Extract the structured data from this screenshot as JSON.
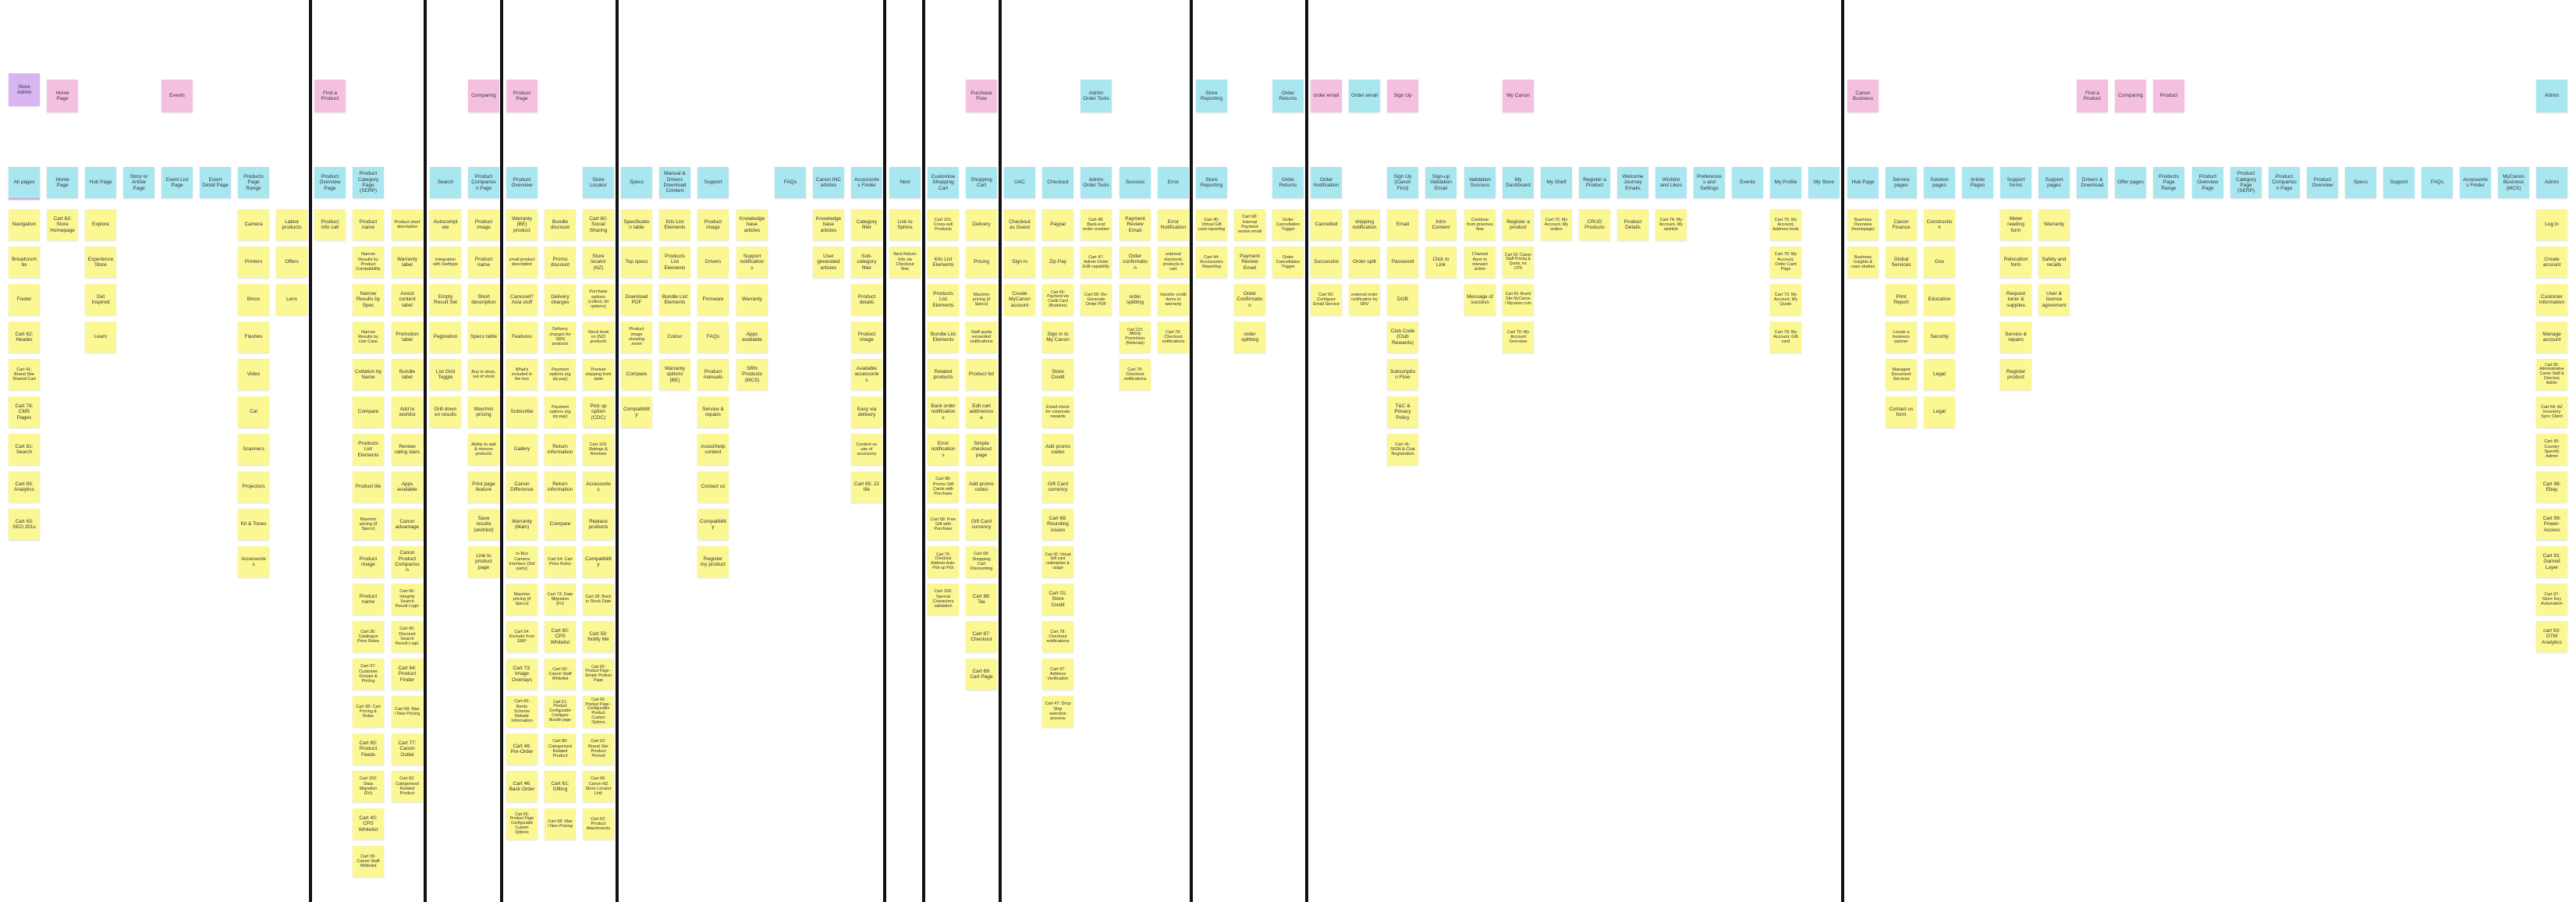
{
  "colors": {
    "yellow": "#fbf793",
    "blue": "#a8e6f0",
    "pink": "#f5c0e0",
    "purple": "#d8b5f0",
    "divider": "#111111"
  },
  "columns": [
    {
      "header": "All pages",
      "tags": [
        [
          "Store Admin",
          "purple"
        ],
        [
          "User",
          "purple"
        ]
      ],
      "items": [
        "Navigation",
        "Breadcrumbs",
        "Footer",
        "Cart 62: Header",
        "Cart 41: Brand Site Shared Cart",
        "Cart 78: CMS Pages",
        "Cart 81: Search",
        "Cart 83: Analytics",
        "Cart 43: SEO 301s"
      ]
    },
    {
      "header": "Home Page",
      "tags": [
        [
          "Home Page",
          "pink"
        ]
      ],
      "items": [
        "Cart 63: Store Homepage"
      ]
    },
    {
      "header": "Hub Page",
      "tags": [],
      "items": [
        "Explore",
        "Experience Store",
        "Get Inspired",
        "Learn"
      ]
    },
    {
      "header": "Story or Article Page",
      "tags": [],
      "items": []
    },
    {
      "header": "Event List Page",
      "tags": [
        [
          "Events",
          "pink"
        ]
      ],
      "items": []
    },
    {
      "header": "Event Detail Page",
      "tags": [],
      "items": []
    },
    {
      "header": "Products Page Range",
      "tags": [],
      "items": [
        "Camera",
        "Printers",
        "Binos",
        "Flashes",
        "Video",
        "Cal",
        "Scanners",
        "Projectors",
        "Kit & Tones",
        "Accessories"
      ]
    },
    {
      "header": "",
      "tags": [],
      "items": [
        "Latest products",
        "Offers",
        "Lens"
      ]
    },
    {
      "header": "Product Overview Page",
      "tags": [
        [
          "Find a Product",
          "pink"
        ]
      ],
      "items": [
        "Product info call"
      ],
      "divider": true
    },
    {
      "header": "Product Category Page (SERP)",
      "tags": [],
      "items": [
        "Product name",
        "Narrow Results by Product Compatibility",
        "Narrow Results by Spec",
        "Narrow Results by Use Case",
        "Collation by Name",
        "Compare",
        "Products List Elements",
        "Product tile",
        "Max/min pricing (if Specs)",
        "Product image",
        "Product name",
        "Cart 36: Catalogue Price Rules",
        "Cart 37: Customer Groups & Pricing",
        "Cart 38: Cart Pricing & Rules",
        "Cart 65: Product Feeds",
        "Cart 150: Data Migration (Fri)",
        "Cart 40: CPS Whitelist",
        "Cart 39: Canon Staff Whitelist"
      ]
    },
    {
      "header": "",
      "tags": [],
      "items": [
        "Product short description",
        "Warranty label",
        "Assist content label",
        "Promotion label",
        "Bundle label",
        "Add to wishlist",
        "Review rating stars",
        "Apps available",
        "Canon advantage",
        "Canon Product Comparison",
        "Cart 66: Integrity Search Result Logic",
        "Cart 66: Discount Search Result Logic",
        "Cart 64: Product Finder",
        "Cart 68: Max / New Pricing",
        "Cart 77: Canon Outlet",
        "Cart 82: Categorised Related Product"
      ]
    },
    {
      "header": "Search",
      "tags": [],
      "items": [
        "Autocomplete",
        "Integration with Swiftype",
        "Empty Result Set",
        "Pagination",
        "List Grid Toggle",
        "Drill down on results"
      ],
      "divider": true
    },
    {
      "header": "Product Comparison Page",
      "tags": [
        [
          "Comparing",
          "pink"
        ]
      ],
      "items": [
        "Product image",
        "Product name",
        "Short description",
        "Specs table",
        "Buy in stock, out of stock",
        "Max/min pricing",
        "Ability to add & remove products",
        "Print page feature",
        "Save results (wishlist)",
        "Link to product page"
      ]
    },
    {
      "header": "Product Overview",
      "tags": [
        [
          "Product Page",
          "pink"
        ]
      ],
      "items": [
        "Warranty (BE) product",
        "small product description",
        "Carousel? Asia stuff",
        "Features",
        "What's included in the box",
        "Subscribe",
        "Gallery",
        "Canon Difference",
        "Warranty (Main)",
        "In-Box Camera Interface (3rd party)",
        "Max/min pricing (if Specs)",
        "Cart 54: Exclude from ERP",
        "Cart 73: Image Overlays",
        "Cart 60: Bento Scheme Rebate Information",
        "Cart 46: Pre-Order",
        "Cart 46: Back Order",
        "Cart 65: Product Page Configurable Custom Options"
      ],
      "divider": true
    },
    {
      "header": "",
      "tags": [],
      "items": [
        "Bundle discount",
        "Promo discount",
        "Delivery charges",
        "Delivery charges for SRN products",
        "Payment options (eg zip pay)",
        "Payment options (eg zip pay)",
        "Return information",
        "Return information",
        "Compare",
        "Cart 54: Cart Price Rules",
        "Cart 73: Date Migration (Fri)",
        "Cart 60: CPS Whitelist",
        "Cart 59: Canon Staff Whitelist",
        "Cart 61: Product Configurable Configure Bundle page",
        "Cart 80: Categorised Related Product",
        "Cart 61: Gifting",
        "Cart 68: Max / Non-Pricing"
      ]
    },
    {
      "header": "Store Locator",
      "tags": [],
      "items": [
        "Cart 60: Social Sharing",
        "Store locator (NZ)",
        "Purchase options (collect, kit options)",
        "Stock level on (NZ) products",
        "Premier shipping from state",
        "Pick up option (CDC)",
        "Cart 103: Ratings & Reviews",
        "Accessories",
        "Replace products",
        "Compatibility",
        "Cart 28: Back in Stock Date",
        "Cart 59: Notify Me",
        "Cart 65: Product Page - Simple Product Page",
        "Cart 66: Product Page - Configurable Product Custom Options",
        "Cart 62: Brand Site Product Pinned",
        "Cart 66: Canon NZ Store Locator Link",
        "Cart 62: Product Attachments"
      ]
    },
    {
      "header": "Specs",
      "tags": [],
      "items": [
        "Specification table",
        "Top specs",
        "Download PDF",
        "Product image showing zoom",
        "Compare",
        "Compatibility"
      ],
      "divider": true
    },
    {
      "header": "Manual & Drivers Download Content",
      "tags": [],
      "items": [
        "Kits List Elements",
        "Products List Elements",
        "Bundle List Elements",
        "Colour",
        "Warranty options (BE)"
      ]
    },
    {
      "header": "Support",
      "tags": [],
      "items": [
        "Product image",
        "Drivers",
        "Firmware",
        "FAQs",
        "Product manuals",
        "Service & repairs",
        "Assist/help content",
        "Contact us",
        "Compatibility",
        "Register my product"
      ]
    },
    {
      "header": "",
      "tags": [],
      "items": [
        "Knowledge base articles",
        "Support notifications",
        "Warranty",
        "Apps available",
        "SRN Products (MCS)"
      ]
    },
    {
      "header": "FAQs",
      "tags": [],
      "items": []
    },
    {
      "header": "Canon INC articles",
      "tags": [],
      "items": [
        "Knowledge base articles",
        "User generated articles"
      ]
    },
    {
      "header": "Accessories Finder",
      "tags": [],
      "items": [
        "Category filter",
        "Sub-category filter",
        "Product details",
        "Product image",
        "Available accessories",
        "Easy via delivery",
        "Content on use of accessory",
        "Cart 65: 22 tile"
      ]
    },
    {
      "header": "Next",
      "tags": [],
      "items": [
        "Link to Sphinx",
        "Next Return Info via Checkout flow"
      ],
      "divider": true
    },
    {
      "header": "Customise Shopping Cart",
      "tags": [],
      "items": [
        "Cart 101: Cross-sell Products",
        "Kits List Elements",
        "Products List Elements",
        "Bundle List Elements",
        "Related products",
        "Back order notifications",
        "Error notifications",
        "Cart 98: Promo Gift Cards with Purchase",
        "Cart 99: Free Gift with Purchase",
        "Cart 70: Checkout Address Auto-Pick-up Pick",
        "Cart 100: Special Characters validation"
      ],
      "divider": true
    },
    {
      "header": "Shopping Cart",
      "tags": [
        [
          "Purchase Flow",
          "pink"
        ]
      ],
      "items": [
        "Delivery",
        "Pricing",
        "Max/min pricing (if Specs)",
        "Staff quota exceeded notifications",
        "Product list",
        "Edit cart add/remove",
        "Simple checkout page",
        "Add promo codes",
        "Gift Card currency",
        "Cart 68: Shopping Cart Discounting",
        "Cart 88: Tax",
        "Cart 87: Checkout",
        "Cart 69: Cart Page"
      ]
    },
    {
      "header": "UAC",
      "tags": [],
      "items": [
        "Checkout as Guest",
        "Sign in",
        "Create MyCanon account"
      ],
      "divider": true
    },
    {
      "header": "Checkout",
      "tags": [],
      "items": [
        "Paypal",
        "Zip Pay",
        "Cart 40: Payment via Credit Card (Braintree)",
        "Sign in to My Canon",
        "Store Credit",
        "Email check for corporate rewards",
        "Add promo codes",
        "Gift Card currency",
        "Cart 68: Rounding issues",
        "Cart 42: Virtual Gift card redemption & usage",
        "Cart 01: Store Credit",
        "Cart 78: Checkout notifications",
        "Cart 97: Address Verification",
        "Cart 47: Drop Ship selection process"
      ]
    },
    {
      "header": "Admin Order Tools",
      "tags": [
        [
          "Admin Order Tools",
          "blue"
        ]
      ],
      "items": [
        "Cart 48: Back-end order creation",
        "Cart 47: Admin Order Edit capability",
        "Cart 58: Re-Generate Order PDF"
      ]
    },
    {
      "header": "Success",
      "tags": [],
      "items": [
        "Payment Review Email",
        "Order confirmation",
        "order splitting",
        "Cart 123: Affinity Promotions (Referrals)",
        "Cart 79: Checkout notifications"
      ]
    },
    {
      "header": "Error",
      "tags": [],
      "items": [
        "Error Notification",
        "external electronic products in cart",
        "transfer credit items to warranty",
        "Cart 79: Checkout notifications"
      ]
    },
    {
      "header": "Store Reporting",
      "tags": [
        [
          "Store Reporting",
          "blue"
        ]
      ],
      "items": [
        "Cart 45: Virtual Gift card reporting",
        "Cart 44: Accessories Reporting"
      ],
      "divider": true
    },
    {
      "header": "",
      "tags": [],
      "items": [
        "Cart 68: Internal Payment review email",
        "Payment Review Email",
        "Order Confirmation",
        "order splitting"
      ]
    },
    {
      "header": "Order Returns",
      "tags": [
        [
          "Order Returns",
          "blue"
        ]
      ],
      "items": [
        "Order Cancellation Trigger",
        "Order Cancellation Trigger"
      ]
    },
    {
      "header": "Order Notification",
      "tags": [
        [
          "order email",
          "pink"
        ]
      ],
      "items": [
        "Cancelled",
        "Successful",
        "Cart 50: Configure Email Service"
      ],
      "divider": true
    },
    {
      "header": "",
      "tags": [
        [
          "Order email",
          "blue"
        ]
      ],
      "items": [
        "shipping notification",
        "Order split",
        "external order notification by SRV"
      ]
    },
    {
      "header": "Sign Up (Canon First)",
      "tags": [
        [
          "Sign Up",
          "pink"
        ]
      ],
      "items": [
        "Email",
        "Password",
        "DOB",
        "Club Code (Club Rewards)",
        "Subscription Flow",
        "T&C & Privacy Policy",
        "Cart 41: SIGN & Club Registration"
      ]
    },
    {
      "header": "Sign-up Validation Email",
      "tags": [],
      "items": [
        "Intro Content",
        "Click to Link"
      ]
    },
    {
      "header": "Validation Success",
      "tags": [],
      "items": [
        "Continue from previous flow",
        "Channel them to relevant action",
        "Message of success"
      ]
    },
    {
      "header": "My Dashboard",
      "tags": [
        [
          "My Canon",
          "pink"
        ]
      ],
      "items": [
        "Register a product",
        "Cart 62: Canon Staff Pricing & Quota, inc CPS",
        "Cart 60: Brand Site MyCanon / Mycanon.com",
        "Cart 70: My Account Overview"
      ]
    },
    {
      "header": "My Shelf",
      "tags": [],
      "items": [
        "Cart 72: My Account, My orders"
      ]
    },
    {
      "header": "Register a Product",
      "tags": [],
      "items": [
        "CRUD Products"
      ]
    },
    {
      "header": "Welcome Journey Emails",
      "tags": [],
      "items": [
        "Product Details"
      ]
    },
    {
      "header": "Wishlist and Likes",
      "tags": [],
      "items": [
        "Cart 74: My Account, My wishlist"
      ]
    },
    {
      "header": "Preferences and Settings",
      "tags": [],
      "items": []
    },
    {
      "header": "Events",
      "tags": [],
      "items": []
    },
    {
      "header": "My Profile",
      "tags": [],
      "items": [
        "Cart 76: My Account, Address book",
        "Cart 75: My Account, Order Card Page",
        "Cart 73: My Account, My Quote",
        "Cart 79: My Account, Gift card"
      ]
    },
    {
      "header": "My Store",
      "tags": [],
      "items": []
    },
    {
      "header": "Hub Page",
      "tags": [
        [
          "Canon Business",
          "pink"
        ]
      ],
      "items": [
        "Business Overview (homepage)",
        "Business Insights & case studies"
      ],
      "divider": true
    },
    {
      "header": "Service pages",
      "tags": [],
      "items": [
        "Canon Finance",
        "Global Services",
        "Print Report",
        "Locate a business partner",
        "Managed Document Services",
        "Contact us form"
      ]
    },
    {
      "header": "Solution pages",
      "tags": [],
      "items": [
        "Construction",
        "Gov",
        "Education",
        "Security",
        "Legal",
        "Legal"
      ]
    },
    {
      "header": "Article Pages",
      "tags": [],
      "items": []
    },
    {
      "header": "Support forms",
      "tags": [],
      "items": [
        "Meter reading form",
        "Relocation form",
        "Request toner & supplies",
        "Service & repairs",
        "Register product"
      ]
    },
    {
      "header": "Support pages",
      "tags": [],
      "items": [
        "Warranty",
        "Safety and recalls",
        "User & license agreement"
      ]
    },
    {
      "header": "Drivers & Download",
      "tags": [
        [
          "Find a Product",
          "pink"
        ]
      ],
      "items": []
    },
    {
      "header": "Offer pages",
      "tags": [
        [
          "Comparing",
          "pink"
        ]
      ],
      "items": []
    },
    {
      "header": "Products Page Range",
      "tags": [
        [
          "Product",
          "pink"
        ]
      ],
      "items": []
    },
    {
      "header": "Product Overview Page",
      "tags": [],
      "items": []
    },
    {
      "header": "Product Category Page (SERP)",
      "tags": [],
      "items": []
    },
    {
      "header": "Product Comparison Page",
      "tags": [],
      "items": []
    },
    {
      "header": "Product Overview",
      "tags": [],
      "items": []
    },
    {
      "header": "Specs",
      "tags": [],
      "items": []
    },
    {
      "header": "Support",
      "tags": [],
      "items": []
    },
    {
      "header": "FAQs",
      "tags": [],
      "items": []
    },
    {
      "header": "Accessories Finder",
      "tags": [],
      "items": []
    },
    {
      "header": "MyCanon Business (MCS)",
      "tags": [],
      "items": []
    },
    {
      "header": "Admin",
      "tags": [
        [
          "Admin",
          "blue"
        ]
      ],
      "items": [
        "Log in",
        "Create account",
        "Customer information",
        "Manage account",
        "Cart 96: Administrative Canon Staff & Directory Admin",
        "Cart 64: AZ Inventory Sync Client",
        "Cart 95: Country Specific Admin",
        "Cart 98: Ebay",
        "Cart 99: Power-Access",
        "Cart 91: Gamed Layer",
        "Cart 97: Store Key Automation",
        "cart 93: GTM Analytics"
      ]
    }
  ]
}
